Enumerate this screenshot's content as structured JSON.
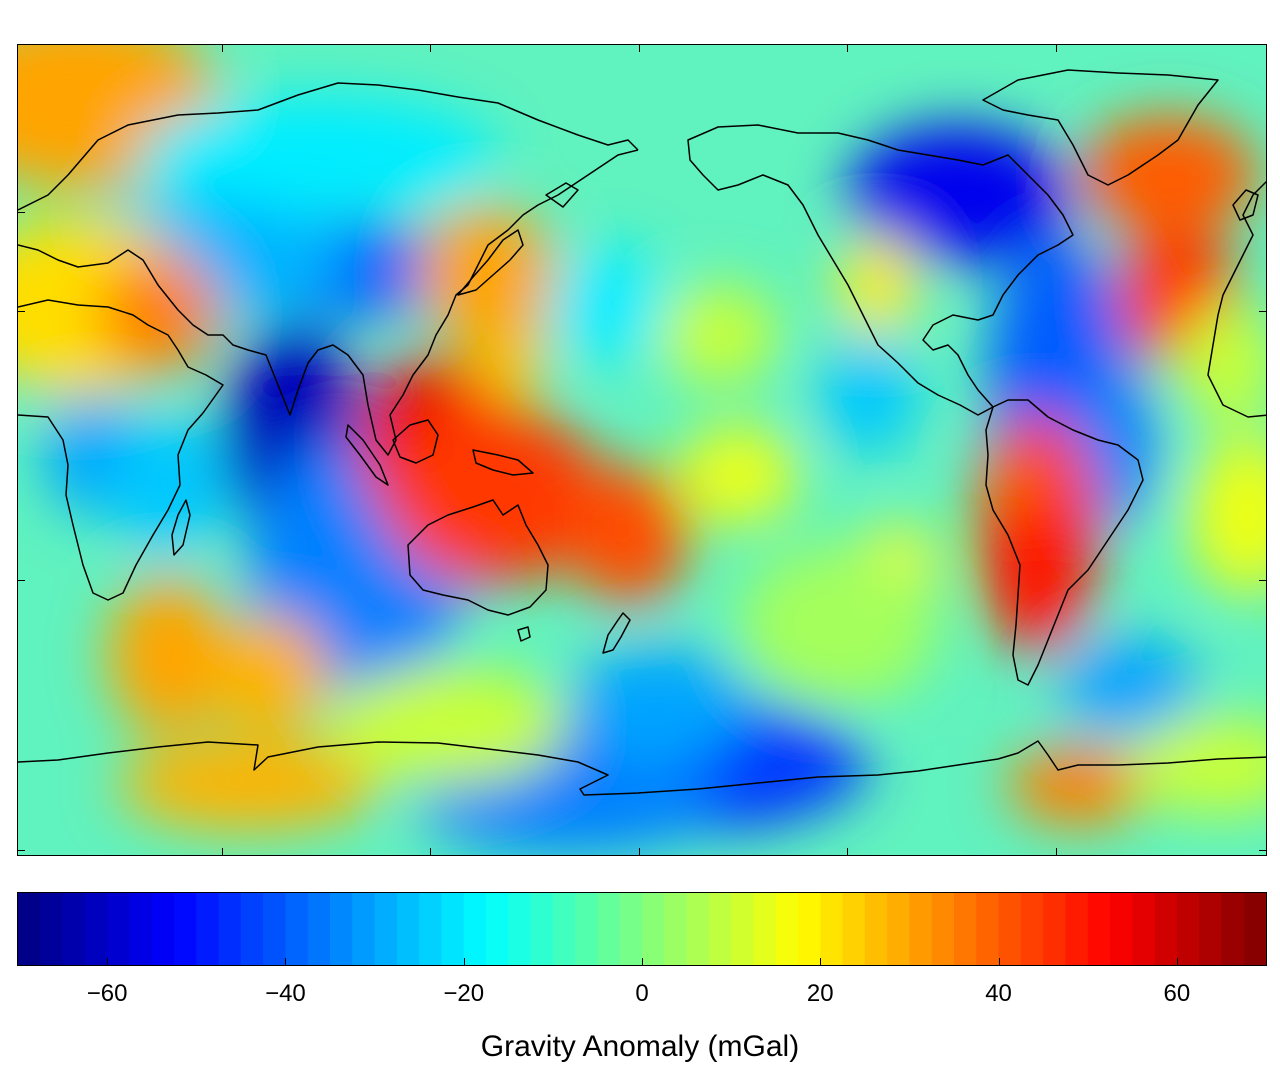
{
  "map": {
    "projection": "equirectangular, centred on the Pacific",
    "colormap": "jet",
    "coastline_color": "#000000"
  },
  "colorbar": {
    "title": "Gravity Anomaly (mGal)",
    "range": [
      -70,
      70
    ],
    "ticks": [
      {
        "value": -60,
        "label": "−60"
      },
      {
        "value": -40,
        "label": "−40"
      },
      {
        "value": -20,
        "label": "−20"
      },
      {
        "value": 0,
        "label": "0"
      },
      {
        "value": 20,
        "label": "20"
      },
      {
        "value": 40,
        "label": "40"
      },
      {
        "value": 60,
        "label": "60"
      }
    ],
    "steps": 56
  }
}
